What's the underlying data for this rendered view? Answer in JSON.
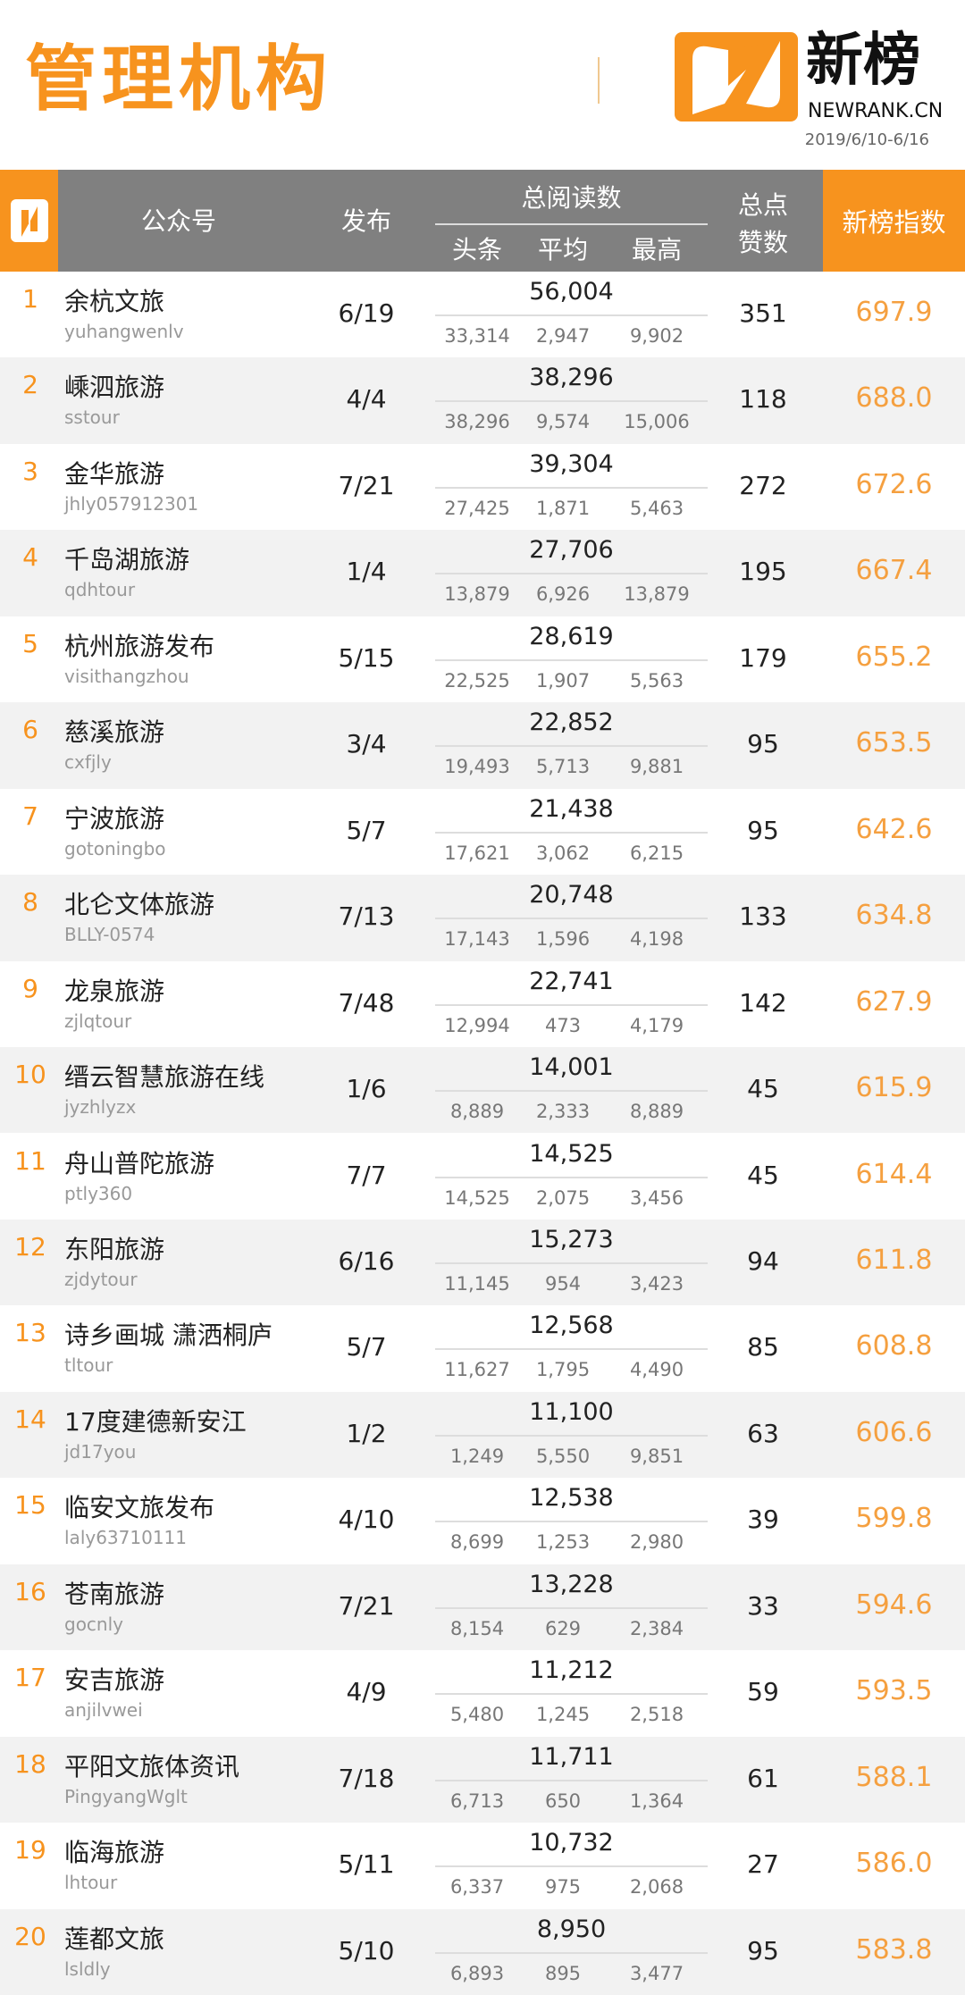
{
  "title": "管理机构",
  "brand": {
    "name": "新榜",
    "domain": "NEWRANK.CN",
    "date_range": "2019/6/10-6/16",
    "color": "#f7931e"
  },
  "header": {
    "account": "公众号",
    "publish": "发布",
    "reads": "总阅读数",
    "head": "头条",
    "avg": "平均",
    "max": "最高",
    "likes_1": "总点",
    "likes_2": "赞数",
    "index": "新榜指数"
  },
  "rows": [
    {
      "rank": "1",
      "name": "余杭文旅",
      "id": "yuhangwenlv",
      "publish": "6/19",
      "total": "56,004",
      "head": "33,314",
      "avg": "2,947",
      "max": "9,902",
      "likes": "351",
      "index": "697.9"
    },
    {
      "rank": "2",
      "name": "嵊泗旅游",
      "id": "sstour",
      "publish": "4/4",
      "total": "38,296",
      "head": "38,296",
      "avg": "9,574",
      "max": "15,006",
      "likes": "118",
      "index": "688.0"
    },
    {
      "rank": "3",
      "name": "金华旅游",
      "id": "jhly057912301",
      "publish": "7/21",
      "total": "39,304",
      "head": "27,425",
      "avg": "1,871",
      "max": "5,463",
      "likes": "272",
      "index": "672.6"
    },
    {
      "rank": "4",
      "name": "千岛湖旅游",
      "id": "qdhtour",
      "publish": "1/4",
      "total": "27,706",
      "head": "13,879",
      "avg": "6,926",
      "max": "13,879",
      "likes": "195",
      "index": "667.4"
    },
    {
      "rank": "5",
      "name": "杭州旅游发布",
      "id": "visithangzhou",
      "publish": "5/15",
      "total": "28,619",
      "head": "22,525",
      "avg": "1,907",
      "max": "5,563",
      "likes": "179",
      "index": "655.2"
    },
    {
      "rank": "6",
      "name": "慈溪旅游",
      "id": "cxfjly",
      "publish": "3/4",
      "total": "22,852",
      "head": "19,493",
      "avg": "5,713",
      "max": "9,881",
      "likes": "95",
      "index": "653.5"
    },
    {
      "rank": "7",
      "name": "宁波旅游",
      "id": "gotoningbo",
      "publish": "5/7",
      "total": "21,438",
      "head": "17,621",
      "avg": "3,062",
      "max": "6,215",
      "likes": "95",
      "index": "642.6"
    },
    {
      "rank": "8",
      "name": "北仑文体旅游",
      "id": "BLLY-0574",
      "publish": "7/13",
      "total": "20,748",
      "head": "17,143",
      "avg": "1,596",
      "max": "4,198",
      "likes": "133",
      "index": "634.8"
    },
    {
      "rank": "9",
      "name": "龙泉旅游",
      "id": "zjlqtour",
      "publish": "7/48",
      "total": "22,741",
      "head": "12,994",
      "avg": "473",
      "max": "4,179",
      "likes": "142",
      "index": "627.9"
    },
    {
      "rank": "10",
      "name": "缙云智慧旅游在线",
      "id": "jyzhlyzx",
      "publish": "1/6",
      "total": "14,001",
      "head": "8,889",
      "avg": "2,333",
      "max": "8,889",
      "likes": "45",
      "index": "615.9"
    },
    {
      "rank": "11",
      "name": "舟山普陀旅游",
      "id": "ptly360",
      "publish": "7/7",
      "total": "14,525",
      "head": "14,525",
      "avg": "2,075",
      "max": "3,456",
      "likes": "45",
      "index": "614.4"
    },
    {
      "rank": "12",
      "name": "东阳旅游",
      "id": "zjdytour",
      "publish": "6/16",
      "total": "15,273",
      "head": "11,145",
      "avg": "954",
      "max": "3,423",
      "likes": "94",
      "index": "611.8"
    },
    {
      "rank": "13",
      "name": "诗乡画城 潇洒桐庐",
      "id": "tltour",
      "publish": "5/7",
      "total": "12,568",
      "head": "11,627",
      "avg": "1,795",
      "max": "4,490",
      "likes": "85",
      "index": "608.8"
    },
    {
      "rank": "14",
      "name": "17度建德新安江",
      "id": "jd17you",
      "publish": "1/2",
      "total": "11,100",
      "head": "1,249",
      "avg": "5,550",
      "max": "9,851",
      "likes": "63",
      "index": "606.6"
    },
    {
      "rank": "15",
      "name": "临安文旅发布",
      "id": "laly63710111",
      "publish": "4/10",
      "total": "12,538",
      "head": "8,699",
      "avg": "1,253",
      "max": "2,980",
      "likes": "39",
      "index": "599.8"
    },
    {
      "rank": "16",
      "name": "苍南旅游",
      "id": "gocnly",
      "publish": "7/21",
      "total": "13,228",
      "head": "8,154",
      "avg": "629",
      "max": "2,384",
      "likes": "33",
      "index": "594.6"
    },
    {
      "rank": "17",
      "name": "安吉旅游",
      "id": "anjilvwei",
      "publish": "4/9",
      "total": "11,212",
      "head": "5,480",
      "avg": "1,245",
      "max": "2,518",
      "likes": "59",
      "index": "593.5"
    },
    {
      "rank": "18",
      "name": "平阳文旅体资讯",
      "id": "PingyangWglt",
      "publish": "7/18",
      "total": "11,711",
      "head": "6,713",
      "avg": "650",
      "max": "1,364",
      "likes": "61",
      "index": "588.1"
    },
    {
      "rank": "19",
      "name": "临海旅游",
      "id": "lhtour",
      "publish": "5/11",
      "total": "10,732",
      "head": "6,337",
      "avg": "975",
      "max": "2,068",
      "likes": "27",
      "index": "586.0"
    },
    {
      "rank": "20",
      "name": "莲都文旅",
      "id": "lsldly",
      "publish": "5/10",
      "total": "8,950",
      "head": "6,893",
      "avg": "895",
      "max": "3,477",
      "likes": "95",
      "index": "583.8"
    }
  ]
}
